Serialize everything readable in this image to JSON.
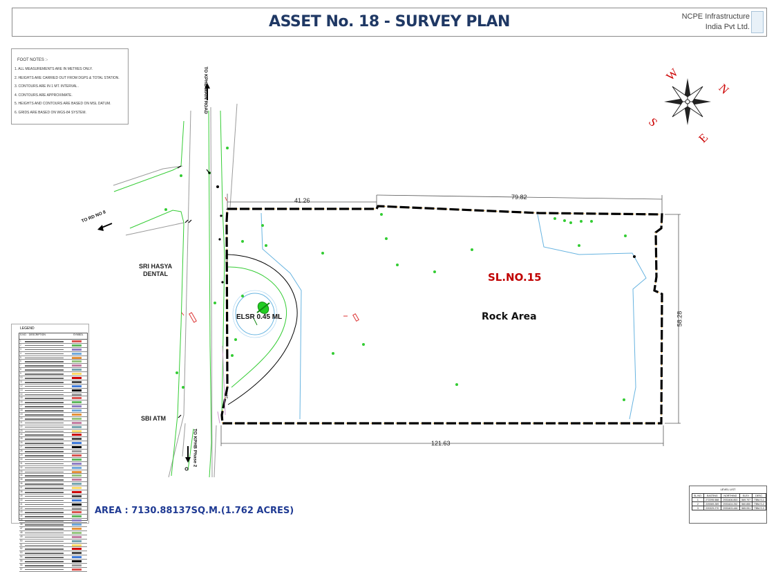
{
  "title": "ASSET No. 18 - SURVEY PLAN",
  "company": {
    "line1": "NCPE Infrastructure",
    "line2": "India Pvt Ltd."
  },
  "footnotes": {
    "title": "FOOT NOTES :-",
    "items": [
      "1.  ALL MEASUREMENTS ARE IN METRES ONLY.",
      "2.  HEIGHTS ARE CARRIED OUT FROM DGPS & TOTAL STATION.",
      "3.  CONTOURS ARE IN 1  MT. INTERVAL .",
      "4.  CONTOURS ARE APPROXIMATE.",
      "5.  HEIGHTS AND CONTOURS ARE BASED ON MSL DATUM.",
      "6.  GRIDS ARE BASED ON WGS-84 SYSTEM."
    ]
  },
  "compass": {
    "n": "N",
    "e": "E",
    "s": "S",
    "w": "W"
  },
  "roads": {
    "to_kphb_main": "TO KPHB MAIN ROAD",
    "to_rd_no_8": "TO RD NO 8",
    "to_kphb_phase2": "TO KPHB Phase 2"
  },
  "places": {
    "hasya_line1": "SRI HASYA",
    "hasya_line2": "DENTAL",
    "sbi_atm": "SBI ATM"
  },
  "dimensions": {
    "top_left": "41.26",
    "top_right": "79.82",
    "right": "58.28",
    "bottom": "121.63"
  },
  "plot": {
    "sl_no": "SL.NO.15",
    "rock_area": "Rock Area",
    "elsr": "ELSR 0.45 ML",
    "gate1": "GATE",
    "gate2": "GATE"
  },
  "area_text": "AREA : 7130.88137SQ.M.(1.762 ACRES)",
  "legend": {
    "title": "LEGEND",
    "headers": [
      "S.NO.",
      "DESCRIPTION",
      "SYMBOL"
    ],
    "rows": [
      "1",
      "2",
      "3",
      "4",
      "5",
      "6",
      "7",
      "8",
      "9",
      "10",
      "11",
      "12",
      "13",
      "14",
      "15",
      "16",
      "17",
      "18",
      "19",
      "20",
      "21",
      "22",
      "23",
      "24",
      "25",
      "26",
      "27",
      "28",
      "29",
      "30",
      "31",
      "32",
      "33",
      "34",
      "35",
      "36",
      "37",
      "38",
      "39",
      "40",
      "41",
      "42",
      "43",
      "44",
      "45",
      "46",
      "47",
      "48",
      "49",
      "50",
      "51",
      "52",
      "53",
      "54",
      "55",
      "56",
      "57"
    ],
    "symbol_colors": [
      "#d9534f",
      "#5cb85c",
      "#8e7cc3",
      "#6fa8dc",
      "#e69138",
      "#93c47d",
      "#c27ba0",
      "#76a5af",
      "#ffd966",
      "#cc0000",
      "#444444",
      "#3c78d8",
      "#000000",
      "#999999"
    ]
  },
  "levels": {
    "title": "LEVEL LIST",
    "headers": [
      "SL.NO.",
      "EASTING",
      "NORTHING",
      "ELEV.",
      "DESC."
    ],
    "rows": [
      [
        "1",
        "272295.588",
        "2933406.853",
        "569.707",
        "TBM-S-1"
      ],
      [
        "2",
        "220069.289",
        "2933424.252",
        "560.850",
        "TBM-S-2"
      ],
      [
        "3",
        "220329.270",
        "2933403.446",
        "565.051",
        "TBM-S-3"
      ]
    ]
  },
  "colors": {
    "title": "#1f3864",
    "sl_no": "#c00000",
    "area": "#1f3a93",
    "green": "#33cc33",
    "water": "#66b3e0",
    "compass_letters": "#cc0000"
  }
}
